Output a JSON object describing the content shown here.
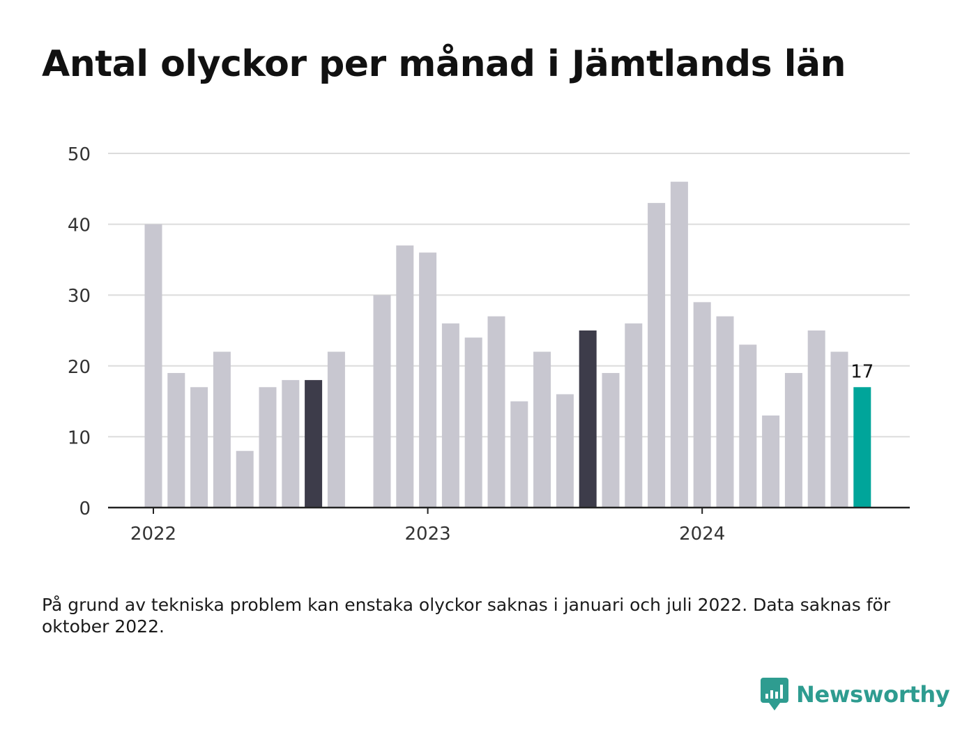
{
  "title": "Antal olyckor per månad i Jämtlands län",
  "note": "På grund av tekniska problem kan enstaka olyckor saknas i januari och juli 2022. Data saknas för oktober 2022.",
  "brand": {
    "name": "Newsworthy",
    "icon": "newsworthy-logo-icon"
  },
  "colors": {
    "bar": "#c8c7d0",
    "july": "#3d3c4a",
    "latest": "#00a59a",
    "grid": "#dcdcdc",
    "axis": "#222222"
  },
  "chart_data": {
    "type": "bar",
    "title": "Antal olyckor per månad i Jämtlands län",
    "xlabel": "",
    "ylabel": "",
    "ylim": [
      0,
      50
    ],
    "yticks": [
      0,
      10,
      20,
      30,
      40,
      50
    ],
    "xticks": [
      {
        "label": "2022",
        "month": "2022-01"
      },
      {
        "label": "2023",
        "month": "2023-01"
      },
      {
        "label": "2024",
        "month": "2024-01"
      }
    ],
    "grid": true,
    "months": [
      "2022-01",
      "2022-02",
      "2022-03",
      "2022-04",
      "2022-05",
      "2022-06",
      "2022-07",
      "2022-08",
      "2022-09",
      "2022-10",
      "2022-11",
      "2022-12",
      "2023-01",
      "2023-02",
      "2023-03",
      "2023-04",
      "2023-05",
      "2023-06",
      "2023-07",
      "2023-08",
      "2023-09",
      "2023-10",
      "2023-11",
      "2023-12",
      "2024-01",
      "2024-02",
      "2024-03",
      "2024-04",
      "2024-05",
      "2024-06",
      "2024-07",
      "2024-08"
    ],
    "values": [
      40,
      19,
      17,
      22,
      8,
      17,
      18,
      18,
      22,
      null,
      30,
      37,
      36,
      26,
      24,
      27,
      15,
      22,
      16,
      25,
      19,
      26,
      43,
      46,
      29,
      27,
      23,
      13,
      19,
      25,
      22,
      17
    ],
    "highlight_dark": [
      "2022-08",
      "2023-08"
    ],
    "highlight_latest": "2024-08",
    "value_label": {
      "month": "2024-08",
      "text": "17"
    }
  }
}
